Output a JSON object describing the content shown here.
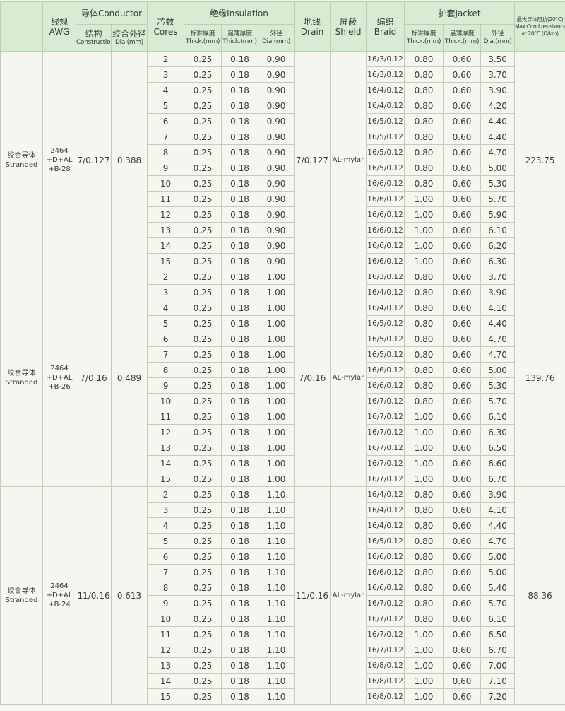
{
  "header": {
    "awg": [
      "线规",
      "AWG"
    ],
    "conductor": [
      "导体Conductor"
    ],
    "construction": [
      "结构",
      "Construction"
    ],
    "dia": [
      "绞合外径",
      "Dia.(mm)"
    ],
    "cores": [
      "芯数",
      "Cores"
    ],
    "insulation": [
      "绝缘Insulation"
    ],
    "ins_thick": [
      "标准厚度",
      "Thick.(mm)"
    ],
    "ins_min": [
      "最薄厚度",
      "Thick.(mm)"
    ],
    "ins_od": [
      "外径",
      "Dia.(mm)"
    ],
    "drain": [
      "地线",
      "Drain"
    ],
    "shield": [
      "屏蔽",
      "Shield"
    ],
    "braid": [
      "编织",
      "Braid"
    ],
    "jacket": [
      "护套Jacket"
    ],
    "jk_thick": [
      "标准厚度",
      "Thick.(mm)"
    ],
    "jk_min": [
      "最薄厚度",
      "Thick.(mm)"
    ],
    "jk_od": [
      "外径",
      "Dia.(mm)"
    ],
    "resistance": [
      "最大导体阻抗(20°C)",
      "Max.Cond.resistance",
      "at 20°C (Ω/km)"
    ]
  },
  "groups": [
    {
      "type": [
        "绞合导体",
        "Stranded"
      ],
      "awg": [
        "2464",
        "+D+AL",
        "+B-28"
      ],
      "construction": "7/0.127",
      "dia": "0.388",
      "drain": "7/0.127",
      "shield": "AL-mylar",
      "resistance": "223.75",
      "rows": [
        [
          "2",
          "0.25",
          "0.18",
          "0.90",
          "16/3/0.12",
          "0.80",
          "0.60",
          "3.50"
        ],
        [
          "3",
          "0.25",
          "0.18",
          "0.90",
          "16/3/0.12",
          "0.80",
          "0.60",
          "3.70"
        ],
        [
          "4",
          "0.25",
          "0.18",
          "0.90",
          "16/4/0.12",
          "0.80",
          "0.60",
          "3.90"
        ],
        [
          "5",
          "0.25",
          "0.18",
          "0.90",
          "16/4/0.12",
          "0.80",
          "0.60",
          "4.20"
        ],
        [
          "6",
          "0.25",
          "0.18",
          "0.90",
          "16/5/0.12",
          "0.80",
          "0.60",
          "4.40"
        ],
        [
          "7",
          "0.25",
          "0.18",
          "0.90",
          "16/5/0.12",
          "0.80",
          "0.60",
          "4.40"
        ],
        [
          "8",
          "0.25",
          "0.18",
          "0.90",
          "16/5/0.12",
          "0.80",
          "0.60",
          "4.70"
        ],
        [
          "9",
          "0.25",
          "0.18",
          "0.90",
          "16/5/0.12",
          "0.80",
          "0.60",
          "5.00"
        ],
        [
          "10",
          "0.25",
          "0.18",
          "0.90",
          "16/6/0.12",
          "0.80",
          "0.60",
          "5.30"
        ],
        [
          "11",
          "0.25",
          "0.18",
          "0.90",
          "16/6/0.12",
          "1.00",
          "0.60",
          "5.70"
        ],
        [
          "12",
          "0.25",
          "0.18",
          "0.90",
          "16/6/0.12",
          "1.00",
          "0.60",
          "5.90"
        ],
        [
          "13",
          "0.25",
          "0.18",
          "0.90",
          "16/6/0.12",
          "1.00",
          "0.60",
          "6.10"
        ],
        [
          "14",
          "0.25",
          "0.18",
          "0.90",
          "16/6/0.12",
          "1.00",
          "0.60",
          "6.20"
        ],
        [
          "15",
          "0.25",
          "0.18",
          "0.90",
          "16/6/0.12",
          "1.00",
          "0.60",
          "6.30"
        ]
      ]
    },
    {
      "type": [
        "绞合导体",
        "Stranded"
      ],
      "awg": [
        "2464",
        "+D+AL",
        "+B-26"
      ],
      "construction": "7/0.16",
      "dia": "0.489",
      "drain": "7/0.16",
      "shield": "AL-mylar",
      "resistance": "139.76",
      "rows": [
        [
          "2",
          "0.25",
          "0.18",
          "1.00",
          "16/3/0.12",
          "0.80",
          "0.60",
          "3.70"
        ],
        [
          "3",
          "0.25",
          "0.18",
          "1.00",
          "16/4/0.12",
          "0.80",
          "0.60",
          "3.90"
        ],
        [
          "4",
          "0.25",
          "0.18",
          "1.00",
          "16/4/0.12",
          "0.80",
          "0.60",
          "4.10"
        ],
        [
          "5",
          "0.25",
          "0.18",
          "1.00",
          "16/5/0.12",
          "0.80",
          "0.60",
          "4.40"
        ],
        [
          "6",
          "0.25",
          "0.18",
          "1.00",
          "16/5/0.12",
          "0.80",
          "0.60",
          "4.70"
        ],
        [
          "7",
          "0.25",
          "0.18",
          "1.00",
          "16/5/0.12",
          "0.80",
          "0.60",
          "4.70"
        ],
        [
          "8",
          "0.25",
          "0.18",
          "1.00",
          "16/6/0.12",
          "0.80",
          "0.60",
          "5.00"
        ],
        [
          "9",
          "0.25",
          "0.18",
          "1.00",
          "16/6/0.12",
          "0.80",
          "0.60",
          "5.30"
        ],
        [
          "10",
          "0.25",
          "0.18",
          "1.00",
          "16/7/0.12",
          "0.80",
          "0.60",
          "5.70"
        ],
        [
          "11",
          "0.25",
          "0.18",
          "1.00",
          "16/7/0.12",
          "1.00",
          "0.60",
          "6.10"
        ],
        [
          "12",
          "0.25",
          "0.18",
          "1.00",
          "16/7/0.12",
          "1.00",
          "0.60",
          "6.30"
        ],
        [
          "13",
          "0.25",
          "0.18",
          "1.00",
          "16/7/0.12",
          "1.00",
          "0.60",
          "6.50"
        ],
        [
          "14",
          "0.25",
          "0.18",
          "1.00",
          "16/7/0.12",
          "1.00",
          "0.60",
          "6.60"
        ],
        [
          "15",
          "0.25",
          "0.18",
          "1.00",
          "16/7/0.12",
          "1.00",
          "0.60",
          "6.70"
        ]
      ]
    },
    {
      "type": [
        "绞合导体",
        "Stranded"
      ],
      "awg": [
        "2464",
        "+D+AL",
        "+B-24"
      ],
      "construction": "11/0.16",
      "dia": "0.613",
      "drain": "11/0.16",
      "shield": "AL-mylar",
      "resistance": "88.36",
      "rows": [
        [
          "2",
          "0.25",
          "0.18",
          "1.10",
          "16/4/0.12",
          "0.80",
          "0.60",
          "3.90"
        ],
        [
          "3",
          "0.25",
          "0.18",
          "1.10",
          "16/4/0.12",
          "0.80",
          "0.60",
          "4.10"
        ],
        [
          "4",
          "0.25",
          "0.18",
          "1.10",
          "16/4/0.12",
          "0.80",
          "0.60",
          "4.40"
        ],
        [
          "5",
          "0.25",
          "0.18",
          "1.10",
          "16/5/0.12",
          "0.80",
          "0.60",
          "4.70"
        ],
        [
          "6",
          "0.25",
          "0.18",
          "1.10",
          "16/6/0.12",
          "0.80",
          "0.60",
          "5.00"
        ],
        [
          "7",
          "0.25",
          "0.18",
          "1.10",
          "16/6/0.12",
          "0.80",
          "0.60",
          "5.00"
        ],
        [
          "8",
          "0.25",
          "0.18",
          "1.10",
          "16/6/0.12",
          "0.80",
          "0.60",
          "5.40"
        ],
        [
          "9",
          "0.25",
          "0.18",
          "1.10",
          "16/7/0.12",
          "0.80",
          "0.60",
          "5.70"
        ],
        [
          "10",
          "0.25",
          "0.18",
          "1.10",
          "16/7/0.12",
          "0.80",
          "0.60",
          "6.10"
        ],
        [
          "11",
          "0.25",
          "0.18",
          "1.10",
          "16/7/0.12",
          "1.00",
          "0.60",
          "6.50"
        ],
        [
          "12",
          "0.25",
          "0.18",
          "1.10",
          "16/7/0.12",
          "1.00",
          "0.60",
          "6.70"
        ],
        [
          "13",
          "0.25",
          "0.18",
          "1.10",
          "16/8/0.12",
          "1.00",
          "0.60",
          "7.00"
        ],
        [
          "14",
          "0.25",
          "0.18",
          "1.10",
          "16/8/0.12",
          "1.00",
          "0.60",
          "7.10"
        ],
        [
          "15",
          "0.25",
          "0.18",
          "1.10",
          "16/8/0.12",
          "1.00",
          "0.60",
          "7.20"
        ]
      ]
    }
  ]
}
